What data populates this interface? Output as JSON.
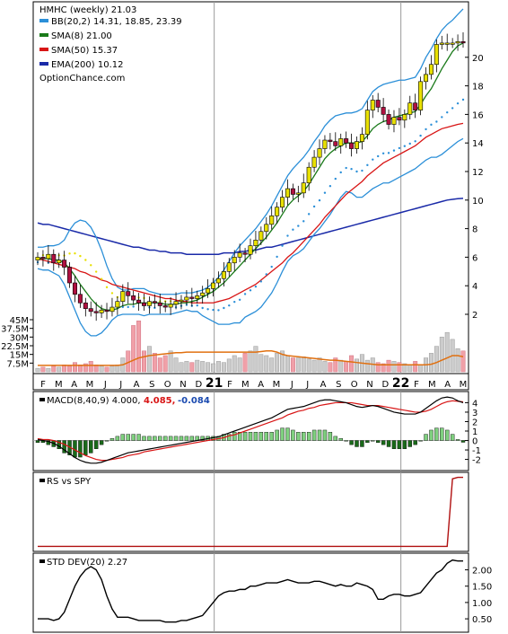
{
  "colors": {
    "bb": "#2b8fd8",
    "sma8": "#1a7a1a",
    "sma50": "#d81515",
    "ema200": "#1a2aa8",
    "psar_blue": "#2b8fd8",
    "psar_yellow": "#e8e000",
    "up_candle": "#e8e000",
    "down_candle": "#b01040",
    "volume_up": "#cccccc",
    "volume_down": "#f0a0a8",
    "volume_avg": "#e07010",
    "macd": "#000000",
    "macd_signal": "#d81515",
    "hist_up": "#7fd07f",
    "hist_down": "#1a6a1a",
    "rs": "#b01010",
    "std": "#000000"
  },
  "chart_data": [
    {
      "type": "candlestick",
      "title": "HMHC (weekly) 21.03",
      "watermark": "OptionChance.com",
      "legend": [
        {
          "label": "BB(20,2) 14.31, 18.85, 23.39",
          "color": "#2b8fd8"
        },
        {
          "label": "SMA(8) 21.00",
          "color": "#1a7a1a"
        },
        {
          "label": "SMA(50) 15.37",
          "color": "#d81515"
        },
        {
          "label": "EMA(200) 10.12",
          "color": "#1a2aa8"
        }
      ],
      "y_ticks": [
        "2",
        "4",
        "6",
        "8",
        "10",
        "12",
        "14",
        "16",
        "18",
        "20"
      ],
      "ylim": [
        0,
        22
      ],
      "x_ticks": [
        "F",
        "M",
        "A",
        "M",
        "J",
        "J",
        "A",
        "S",
        "O",
        "N",
        "D",
        "21",
        "F",
        "M",
        "A",
        "M",
        "J",
        "J",
        "A",
        "S",
        "O",
        "N",
        "D",
        "22",
        "F",
        "M",
        "A",
        "M"
      ],
      "close_series": [
        6.0,
        5.9,
        6.2,
        5.6,
        5.8,
        5.3,
        4.2,
        3.4,
        2.8,
        2.4,
        2.2,
        2.1,
        2.3,
        2.2,
        2.5,
        2.9,
        3.6,
        3.3,
        3.0,
        2.8,
        2.6,
        2.9,
        2.8,
        2.6,
        2.5,
        2.7,
        2.9,
        3.0,
        3.2,
        3.1,
        3.3,
        3.5,
        3.8,
        4.2,
        4.5,
        5.0,
        5.6,
        6.0,
        6.3,
        6.2,
        6.8,
        7.2,
        7.8,
        8.3,
        8.9,
        9.5,
        10.2,
        10.8,
        10.4,
        10.5,
        11.2,
        12.3,
        13.0,
        13.6,
        14.2,
        14.1,
        13.8,
        14.3,
        14.0,
        13.6,
        14.1,
        14.6,
        16.3,
        17.0,
        16.5,
        16.0,
        15.3,
        15.8,
        15.6,
        16.0,
        16.8,
        16.3,
        18.3,
        18.8,
        19.5,
        20.9,
        21.0,
        21.0,
        21.0,
        21.1,
        21.03
      ],
      "sma8_series": [
        5.9,
        5.9,
        5.9,
        5.8,
        5.8,
        5.6,
        5.2,
        4.7,
        4.1,
        3.6,
        3.1,
        2.7,
        2.4,
        2.3,
        2.3,
        2.4,
        2.6,
        2.7,
        2.7,
        2.8,
        2.8,
        2.8,
        2.8,
        2.8,
        2.7,
        2.7,
        2.7,
        2.8,
        2.8,
        2.9,
        3.0,
        3.2,
        3.4,
        3.6,
        3.9,
        4.2,
        4.6,
        5.0,
        5.4,
        5.8,
        6.2,
        6.6,
        7.0,
        7.4,
        7.9,
        8.4,
        9.0,
        9.6,
        10.0,
        10.3,
        10.6,
        11.1,
        11.7,
        12.3,
        12.9,
        13.3,
        13.6,
        13.8,
        14.0,
        14.0,
        14.0,
        14.1,
        14.5,
        15.0,
        15.3,
        15.5,
        15.6,
        15.8,
        15.9,
        16.0,
        16.1,
        16.2,
        16.7,
        17.3,
        17.8,
        18.5,
        19.2,
        19.8,
        20.4,
        20.8,
        21.0
      ],
      "sma50_series": [
        5.9,
        5.8,
        5.7,
        5.6,
        5.5,
        5.4,
        5.3,
        5.2,
        5.0,
        4.9,
        4.7,
        4.6,
        4.4,
        4.3,
        4.1,
        4.0,
        3.9,
        3.8,
        3.7,
        3.6,
        3.5,
        3.4,
        3.3,
        3.2,
        3.1,
        3.1,
        3.0,
        2.9,
        2.9,
        2.8,
        2.8,
        2.8,
        2.8,
        2.8,
        2.9,
        3.0,
        3.1,
        3.3,
        3.5,
        3.7,
        3.9,
        4.1,
        4.4,
        4.7,
        5.0,
        5.3,
        5.6,
        6.0,
        6.3,
        6.7,
        7.1,
        7.5,
        7.9,
        8.3,
        8.8,
        9.2,
        9.6,
        10.0,
        10.4,
        10.7,
        11.0,
        11.3,
        11.7,
        12.0,
        12.3,
        12.6,
        12.8,
        13.0,
        13.2,
        13.4,
        13.6,
        13.8,
        14.1,
        14.4,
        14.6,
        14.8,
        15.0,
        15.1,
        15.2,
        15.3,
        15.37
      ],
      "ema200_series": [
        8.4,
        8.3,
        8.3,
        8.2,
        8.1,
        8.0,
        7.9,
        7.8,
        7.7,
        7.6,
        7.5,
        7.4,
        7.3,
        7.2,
        7.1,
        7.0,
        6.9,
        6.8,
        6.7,
        6.7,
        6.6,
        6.5,
        6.5,
        6.4,
        6.4,
        6.3,
        6.3,
        6.3,
        6.2,
        6.2,
        6.2,
        6.2,
        6.2,
        6.2,
        6.2,
        6.3,
        6.3,
        6.3,
        6.4,
        6.4,
        6.5,
        6.5,
        6.6,
        6.7,
        6.7,
        6.8,
        6.9,
        7.0,
        7.1,
        7.2,
        7.3,
        7.4,
        7.5,
        7.6,
        7.7,
        7.8,
        7.9,
        8.0,
        8.1,
        8.2,
        8.3,
        8.4,
        8.5,
        8.6,
        8.7,
        8.8,
        8.9,
        9.0,
        9.1,
        9.2,
        9.3,
        9.4,
        9.5,
        9.6,
        9.7,
        9.8,
        9.9,
        10.0,
        10.05,
        10.1,
        10.12
      ],
      "bb_upper_series": [
        6.7,
        6.7,
        6.8,
        6.8,
        6.9,
        7.2,
        7.9,
        8.4,
        8.6,
        8.5,
        8.1,
        7.4,
        6.5,
        5.4,
        4.5,
        3.9,
        3.7,
        3.7,
        3.8,
        3.8,
        3.8,
        3.6,
        3.5,
        3.4,
        3.4,
        3.4,
        3.4,
        3.5,
        3.5,
        3.5,
        3.6,
        3.7,
        3.9,
        4.2,
        4.6,
        5.1,
        5.7,
        6.3,
        6.8,
        7.2,
        7.6,
        8.0,
        8.5,
        9.0,
        9.6,
        10.3,
        11.0,
        11.7,
        12.2,
        12.6,
        13.0,
        13.5,
        14.1,
        14.6,
        15.2,
        15.6,
        15.9,
        16.0,
        16.1,
        16.1,
        16.2,
        16.4,
        17.0,
        17.6,
        17.9,
        18.1,
        18.2,
        18.3,
        18.4,
        18.4,
        18.5,
        18.6,
        19.2,
        20.0,
        20.6,
        21.3,
        21.9,
        22.3,
        22.6,
        23.0,
        23.39
      ],
      "bb_lower_series": [
        5.2,
        5.1,
        5.1,
        4.9,
        4.7,
        4.1,
        3.2,
        2.3,
        1.4,
        0.8,
        0.5,
        0.5,
        0.7,
        1.1,
        1.6,
        1.9,
        2.0,
        2.0,
        2.0,
        2.0,
        1.9,
        2.0,
        2.0,
        2.0,
        2.0,
        2.0,
        2.1,
        2.2,
        2.3,
        2.2,
        2.2,
        1.9,
        1.7,
        1.5,
        1.3,
        1.3,
        1.3,
        1.4,
        1.4,
        1.8,
        2.0,
        2.2,
        2.5,
        3.0,
        3.5,
        4.2,
        5.0,
        5.7,
        6.1,
        6.3,
        6.6,
        7.1,
        7.6,
        8.0,
        8.5,
        9.0,
        9.6,
        10.2,
        10.6,
        10.5,
        10.2,
        10.2,
        10.5,
        10.8,
        11.0,
        11.2,
        11.2,
        11.4,
        11.6,
        11.8,
        12.0,
        12.2,
        12.5,
        12.8,
        13.0,
        13.0,
        13.2,
        13.5,
        13.8,
        14.1,
        14.31
      ],
      "volume_y_ticks": [
        "7.5M",
        "15M",
        "22.5M",
        "30M",
        "37.5M",
        "45M"
      ],
      "volume_series": [
        3,
        4,
        3,
        5,
        4,
        6,
        5,
        8,
        6,
        7,
        9,
        6,
        5,
        4,
        5,
        6,
        12,
        18,
        40,
        44,
        18,
        22,
        16,
        12,
        14,
        18,
        12,
        8,
        9,
        8,
        10,
        9,
        8,
        7,
        9,
        8,
        11,
        14,
        12,
        16,
        18,
        22,
        15,
        14,
        12,
        16,
        18,
        14,
        12,
        12,
        13,
        11,
        10,
        12,
        9,
        8,
        12,
        10,
        9,
        14,
        11,
        15,
        10,
        12,
        8,
        7,
        10,
        9,
        8,
        7,
        6,
        9,
        6,
        12,
        16,
        22,
        30,
        34,
        28,
        20,
        18
      ],
      "volume_avg_series": [
        5.5,
        5.5,
        5.5,
        5.5,
        5.5,
        5.5,
        5.5,
        5.5,
        5.5,
        5.5,
        5.5,
        5.5,
        5.5,
        5.5,
        5.5,
        5.5,
        6,
        8,
        10,
        12,
        13,
        14,
        14.5,
        15,
        15.5,
        16,
        16.5,
        16.5,
        17,
        17,
        17,
        17,
        17,
        17,
        17,
        17,
        17,
        17,
        17,
        17,
        17,
        17,
        17.5,
        18,
        18,
        17,
        15,
        14,
        13.5,
        13,
        12.5,
        12,
        11.5,
        11,
        10.5,
        10,
        10,
        9.5,
        9,
        8.5,
        8,
        7.5,
        7,
        6.5,
        6,
        6,
        6,
        6,
        6,
        6,
        6,
        6,
        6,
        6,
        6.5,
        8,
        10,
        12,
        14,
        14,
        13
      ]
    },
    {
      "type": "line",
      "title": "MACD(8,40,9) 4.000, 4.085, -0.084",
      "label_macd": "MACD(8,40,9) 4.000,",
      "label_signal": "4.085,",
      "label_hist": "-0.084",
      "y_ticks": [
        "-2",
        "-1",
        "0",
        "1",
        "2",
        "3",
        "4"
      ],
      "ylim": [
        -2.8,
        4.8
      ],
      "macd_series": [
        0.1,
        0.0,
        -0.1,
        -0.3,
        -0.6,
        -1.0,
        -1.4,
        -1.8,
        -2.1,
        -2.3,
        -2.4,
        -2.4,
        -2.3,
        -2.1,
        -1.9,
        -1.7,
        -1.5,
        -1.3,
        -1.2,
        -1.1,
        -1.0,
        -0.9,
        -0.8,
        -0.7,
        -0.6,
        -0.5,
        -0.4,
        -0.3,
        -0.2,
        -0.1,
        0.0,
        0.1,
        0.2,
        0.3,
        0.4,
        0.6,
        0.8,
        1.0,
        1.2,
        1.4,
        1.6,
        1.8,
        2.0,
        2.2,
        2.4,
        2.7,
        3.0,
        3.3,
        3.4,
        3.5,
        3.6,
        3.8,
        4.0,
        4.2,
        4.3,
        4.3,
        4.2,
        4.1,
        4.0,
        3.8,
        3.6,
        3.5,
        3.6,
        3.7,
        3.6,
        3.4,
        3.2,
        3.0,
        2.9,
        2.8,
        2.8,
        2.8,
        3.0,
        3.4,
        3.8,
        4.2,
        4.5,
        4.6,
        4.5,
        4.2,
        4.0
      ],
      "signal_series": [
        0.2,
        0.1,
        0.1,
        0.0,
        -0.2,
        -0.4,
        -0.7,
        -1.0,
        -1.3,
        -1.6,
        -1.8,
        -2.0,
        -2.1,
        -2.1,
        -2.0,
        -1.9,
        -1.8,
        -1.6,
        -1.5,
        -1.4,
        -1.2,
        -1.1,
        -1.0,
        -0.9,
        -0.8,
        -0.7,
        -0.6,
        -0.5,
        -0.4,
        -0.3,
        -0.2,
        -0.1,
        0.0,
        0.1,
        0.2,
        0.3,
        0.5,
        0.6,
        0.8,
        1.0,
        1.2,
        1.4,
        1.6,
        1.8,
        2.0,
        2.2,
        2.4,
        2.7,
        2.9,
        3.1,
        3.2,
        3.4,
        3.5,
        3.7,
        3.8,
        3.9,
        4.0,
        4.0,
        4.0,
        4.0,
        3.9,
        3.8,
        3.7,
        3.7,
        3.7,
        3.6,
        3.5,
        3.4,
        3.3,
        3.2,
        3.1,
        3.0,
        3.0,
        3.1,
        3.3,
        3.6,
        3.9,
        4.1,
        4.2,
        4.15,
        4.085
      ]
    },
    {
      "type": "line",
      "title": "RS vs SPY",
      "ylim": [
        0,
        1
      ],
      "rs_series": [
        0.02,
        0.02,
        0.02,
        0.02,
        0.02,
        0.02,
        0.02,
        0.02,
        0.02,
        0.02,
        0.02,
        0.02,
        0.02,
        0.02,
        0.02,
        0.02,
        0.02,
        0.02,
        0.02,
        0.02,
        0.02,
        0.02,
        0.02,
        0.02,
        0.02,
        0.02,
        0.02,
        0.02,
        0.02,
        0.02,
        0.02,
        0.02,
        0.02,
        0.02,
        0.02,
        0.02,
        0.02,
        0.02,
        0.02,
        0.02,
        0.02,
        0.02,
        0.02,
        0.02,
        0.02,
        0.02,
        0.02,
        0.02,
        0.02,
        0.02,
        0.02,
        0.02,
        0.02,
        0.02,
        0.02,
        0.02,
        0.02,
        0.02,
        0.02,
        0.02,
        0.02,
        0.02,
        0.02,
        0.02,
        0.02,
        0.02,
        0.02,
        0.02,
        0.02,
        0.02,
        0.02,
        0.02,
        0.02,
        0.02,
        0.02,
        0.02,
        0.02,
        0.02,
        0.96,
        0.98,
        0.98
      ]
    },
    {
      "type": "line",
      "title": "STD DEV(20) 2.27",
      "y_ticks": [
        "0.50",
        "1.00",
        "1.50",
        "2.00"
      ],
      "ylim": [
        0.2,
        2.4
      ],
      "std_series": [
        0.5,
        0.5,
        0.5,
        0.45,
        0.5,
        0.7,
        1.1,
        1.5,
        1.8,
        2.0,
        2.1,
        2.0,
        1.7,
        1.2,
        0.8,
        0.55,
        0.55,
        0.55,
        0.5,
        0.45,
        0.45,
        0.45,
        0.45,
        0.45,
        0.4,
        0.4,
        0.4,
        0.45,
        0.45,
        0.5,
        0.55,
        0.6,
        0.8,
        1.0,
        1.2,
        1.3,
        1.35,
        1.35,
        1.4,
        1.4,
        1.5,
        1.5,
        1.55,
        1.6,
        1.6,
        1.6,
        1.65,
        1.7,
        1.65,
        1.6,
        1.6,
        1.6,
        1.65,
        1.65,
        1.6,
        1.55,
        1.5,
        1.55,
        1.5,
        1.5,
        1.6,
        1.55,
        1.5,
        1.4,
        1.1,
        1.1,
        1.2,
        1.25,
        1.25,
        1.2,
        1.2,
        1.25,
        1.3,
        1.5,
        1.7,
        1.9,
        2.0,
        2.2,
        2.3,
        2.27,
        2.27
      ]
    }
  ]
}
